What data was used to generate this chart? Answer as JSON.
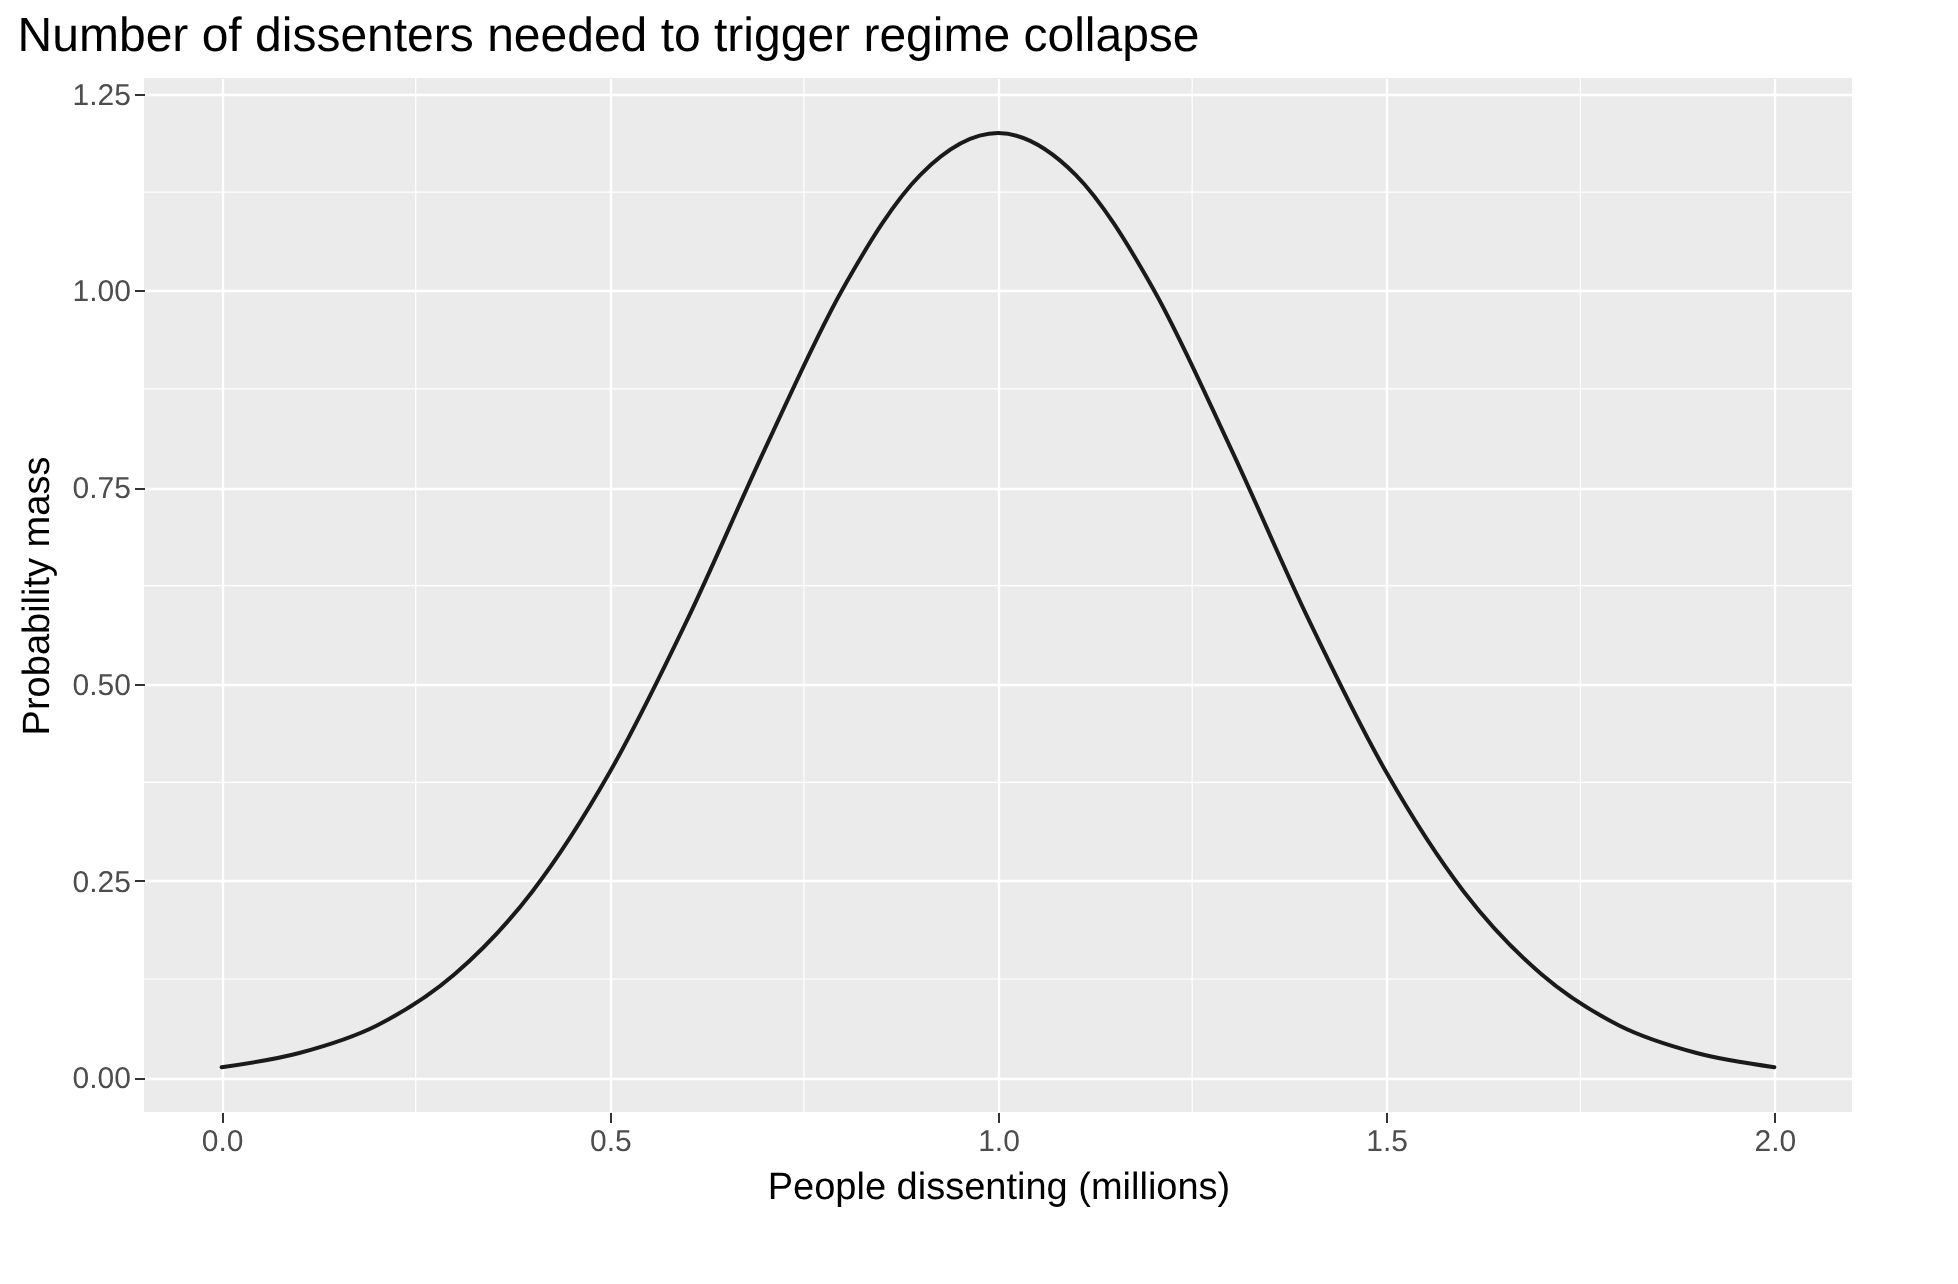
{
  "chart_data": {
    "type": "line",
    "title": "Number of dissenters needed to trigger regime collapse",
    "xlabel": "People dissenting (millions)",
    "ylabel": "Probability mass",
    "x": [
      0,
      0.1,
      0.2,
      0.3,
      0.4,
      0.5,
      0.6,
      0.7,
      0.8,
      0.9,
      1.0,
      1.1,
      1.2,
      1.3,
      1.4,
      1.5,
      1.6,
      1.7,
      1.8,
      1.9,
      2.0
    ],
    "series": [
      {
        "color": "#1a1a1a",
        "values": [
          0.013,
          0.031,
          0.066,
          0.131,
          0.236,
          0.388,
          0.582,
          0.799,
          1.002,
          1.147,
          1.2,
          1.147,
          1.002,
          0.799,
          0.582,
          0.388,
          0.236,
          0.131,
          0.066,
          0.031,
          0.013
        ]
      }
    ],
    "xlim": [
      -0.1,
      2.1
    ],
    "ylim": [
      -0.044,
      1.27
    ],
    "xticks": [
      {
        "value": 0,
        "label": "0.0"
      },
      {
        "value": 0.5,
        "label": "0.5"
      },
      {
        "value": 1,
        "label": "1.0"
      },
      {
        "value": 1.5,
        "label": "1.5"
      },
      {
        "value": 2,
        "label": "2.0"
      }
    ],
    "yticks": [
      {
        "value": 0,
        "label": "0.00"
      },
      {
        "value": 0.25,
        "label": "0.25"
      },
      {
        "value": 0.5,
        "label": "0.50"
      },
      {
        "value": 0.75,
        "label": "0.75"
      },
      {
        "value": 1,
        "label": "1.00"
      },
      {
        "value": 1.25,
        "label": "1.25"
      }
    ],
    "grid": true,
    "marker": "none",
    "line_style": "solid"
  }
}
